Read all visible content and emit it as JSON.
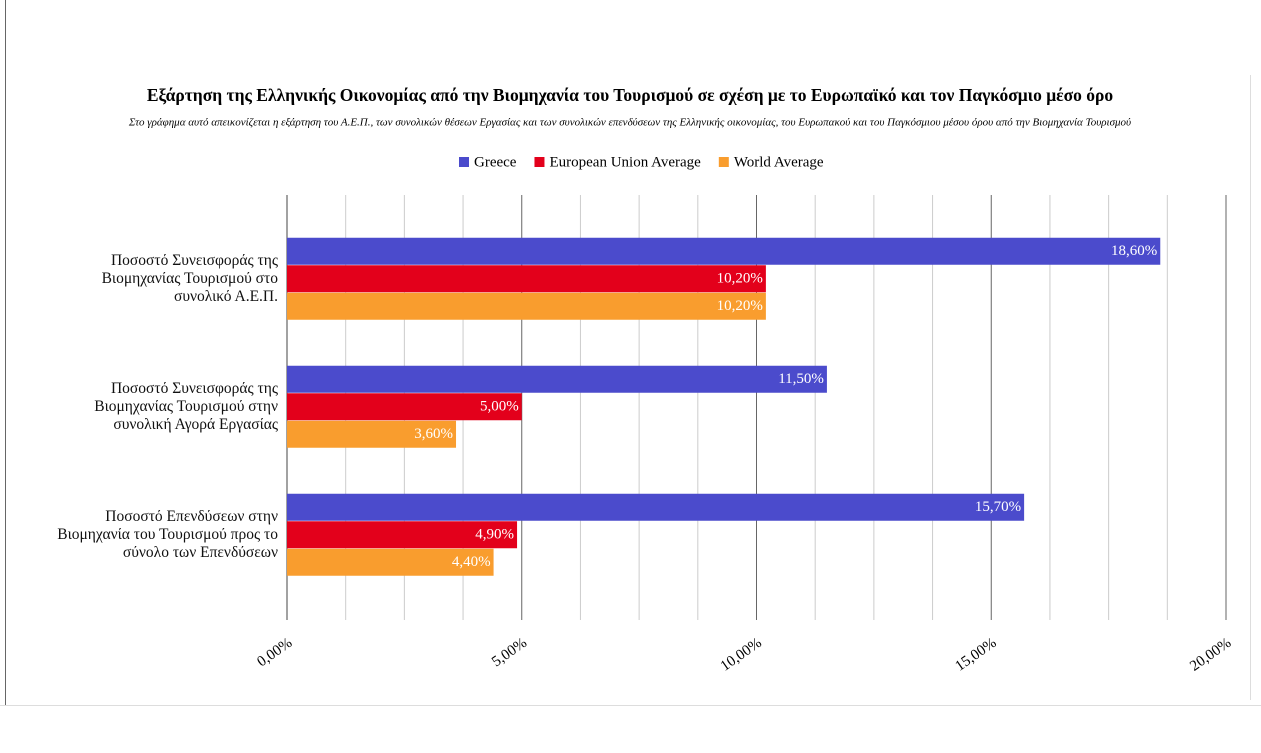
{
  "chart_data": {
    "type": "hbar",
    "title": "Εξάρτηση της Ελληνικής Οικονομίας από την Βιομηχανία του Τουρισμού σε σχέση με το Ευρωπαϊκό και τον Παγκόσμιο μέσο όρο",
    "subtitle": "Στο γράφημα αυτό απεικονίζεται η εξάρτηση του Α.Ε.Π., των συνολικών θέσεων Εργασίας και των συνολικών επενδύσεων της Ελληνικής οικονομίας, του Ευρωπακού και του Παγκόσμιου μέσου όρου από την Βιομηχανία Τουρισμού",
    "categories": [
      "Ποσοστό Συνεισφοράς της\nΒιομηχανίας Τουρισμού στο\nσυνολικό Α.Ε.Π.",
      "Ποσοστό Συνεισφοράς της\nΒιομηχανίας Τουρισμού στην\nσυνολική Αγορά Εργασίας",
      "Ποσοστό Επενδύσεων στην\nΒιομηχανία του Τουρισμού προς το\nσύνολο των Επενδύσεων"
    ],
    "series": [
      {
        "name": "Greece",
        "color": "#4b4bcc",
        "values": [
          18.6,
          11.5,
          15.7
        ],
        "value_labels": [
          "18,60%",
          "11,50%",
          "15,70%"
        ]
      },
      {
        "name": "European Union Average",
        "color": "#e3001b",
        "values": [
          10.2,
          5.0,
          4.9
        ],
        "value_labels": [
          "10,20%",
          "5,00%",
          "4,90%"
        ]
      },
      {
        "name": "World Average",
        "color": "#f99d2e",
        "values": [
          10.2,
          3.6,
          4.4
        ],
        "value_labels": [
          "10,20%",
          "3,60%",
          "4,40%"
        ]
      }
    ],
    "xlim": [
      0,
      20
    ],
    "xticks": [
      {
        "value": 0,
        "label": "0,00%"
      },
      {
        "value": 5,
        "label": "5,00%"
      },
      {
        "value": 10,
        "label": "10,00%"
      },
      {
        "value": 15,
        "label": "15,00%"
      },
      {
        "value": 20,
        "label": "20,00%"
      }
    ],
    "grid": true,
    "minor_grid": 4,
    "legend": "top"
  }
}
